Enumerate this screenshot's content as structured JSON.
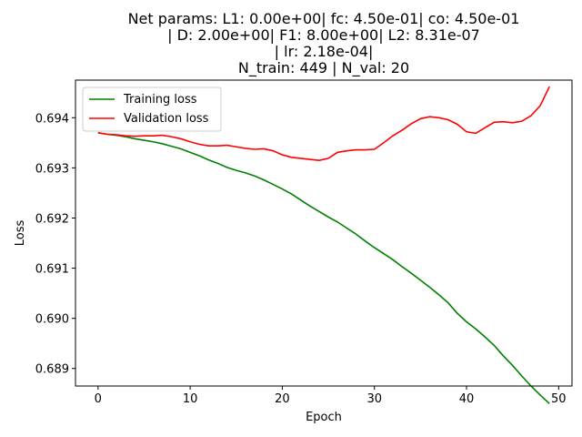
{
  "chart_data": {
    "type": "line",
    "title_lines": [
      "Net params: L1: 0.00e+00| fc: 4.50e-01| co: 4.50e-01",
      "| D: 2.00e+00| F1: 8.00e+00| L2: 8.31e-07",
      "| lr: 2.18e-04|",
      "N_train: 449 | N_val: 20"
    ],
    "xlabel": "Epoch",
    "ylabel": "Loss",
    "xlim": [
      -2.45,
      51.45
    ],
    "ylim": [
      0.68865,
      0.69475
    ],
    "xticks": [
      0,
      10,
      20,
      30,
      40,
      50
    ],
    "yticks": [
      0.689,
      0.69,
      0.691,
      0.692,
      0.693,
      0.694
    ],
    "ytick_labels": [
      "0.689",
      "0.690",
      "0.691",
      "0.692",
      "0.693",
      "0.694"
    ],
    "legend_position": "top-left",
    "x": [
      0,
      1,
      2,
      3,
      4,
      5,
      6,
      7,
      8,
      9,
      10,
      11,
      12,
      13,
      14,
      15,
      16,
      17,
      18,
      19,
      20,
      21,
      22,
      23,
      24,
      25,
      26,
      27,
      28,
      29,
      30,
      31,
      32,
      33,
      34,
      35,
      36,
      37,
      38,
      39,
      40,
      41,
      42,
      43,
      44,
      45,
      46,
      47,
      48,
      49
    ],
    "series": [
      {
        "name": "Training loss",
        "color": "#008000",
        "values": [
          0.6937,
          0.69367,
          0.69365,
          0.69362,
          0.69358,
          0.69355,
          0.69352,
          0.69348,
          0.69343,
          0.69338,
          0.69331,
          0.69324,
          0.69316,
          0.69309,
          0.69301,
          0.69295,
          0.6929,
          0.69284,
          0.69276,
          0.69267,
          0.69258,
          0.69248,
          0.69236,
          0.69224,
          0.69213,
          0.69202,
          0.69192,
          0.6918,
          0.69168,
          0.69154,
          0.69141,
          0.69129,
          0.69117,
          0.69103,
          0.6909,
          0.69076,
          0.69062,
          0.69047,
          0.69031,
          0.6901,
          0.68993,
          0.68979,
          0.68963,
          0.68946,
          0.68925,
          0.68906,
          0.68885,
          0.68865,
          0.68847,
          0.6883
        ]
      },
      {
        "name": "Validation loss",
        "color": "#ff0000",
        "values": [
          0.6937,
          0.69367,
          0.69366,
          0.69364,
          0.69363,
          0.69364,
          0.69364,
          0.69365,
          0.69362,
          0.69358,
          0.69352,
          0.69347,
          0.69344,
          0.69344,
          0.69345,
          0.69342,
          0.69339,
          0.69337,
          0.69338,
          0.69334,
          0.69326,
          0.69321,
          0.69319,
          0.69317,
          0.69315,
          0.69319,
          0.69331,
          0.69334,
          0.69336,
          0.69336,
          0.69337,
          0.6935,
          0.69364,
          0.69375,
          0.69388,
          0.69398,
          0.69402,
          0.694,
          0.69396,
          0.69387,
          0.69372,
          0.69369,
          0.6938,
          0.69391,
          0.69392,
          0.6939,
          0.69393,
          0.69404,
          0.69424,
          0.69462
        ]
      }
    ]
  }
}
